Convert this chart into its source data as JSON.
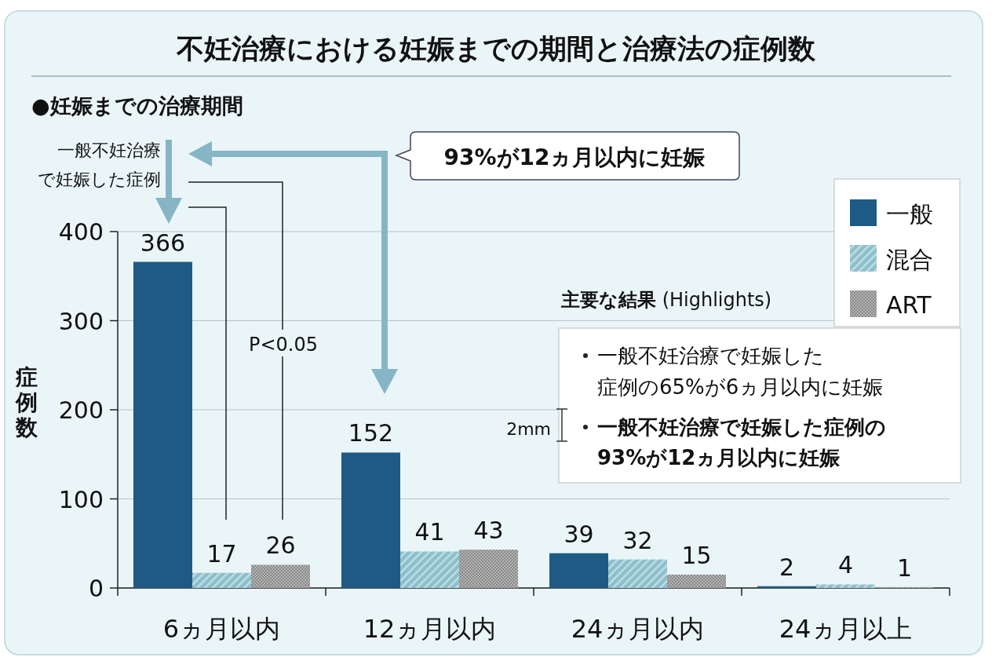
{
  "chart_data": {
    "type": "bar",
    "title": "不妊治療における妊娠までの期間と治療法の症例数",
    "subtitle": "●妊娠までの治療期間",
    "ylabel": "症例数",
    "categories": [
      "6ヵ月以内",
      "12ヵ月以内",
      "24ヵ月以内",
      "24ヵ月以上"
    ],
    "series": [
      {
        "name": "一般",
        "color": "#1f5a85",
        "values": [
          366,
          152,
          39,
          2
        ]
      },
      {
        "name": "混合",
        "color": "#8dbfcc",
        "values": [
          17,
          41,
          32,
          4
        ]
      },
      {
        "name": "ART",
        "color": "#b5b5b5",
        "values": [
          26,
          43,
          15,
          1
        ]
      }
    ],
    "ylim": [
      0,
      400
    ],
    "yticks": [
      0,
      100,
      200,
      300,
      400
    ],
    "grid": "y",
    "legend": "top right",
    "data_labels": true,
    "annotations": [
      "一般不妊治療で妊娠した症例",
      "93%が12ヵ月以内に妊娠",
      "P<0.05",
      "**主要な結果** (Highlights)",
      "一般不妊治療で妊娠した症例の65%が6ヵ月以内に妊娠",
      "一般不妊治療で妊娠した症例の93%が12ヵ月以内に妊娠",
      "2mm"
    ]
  }
}
